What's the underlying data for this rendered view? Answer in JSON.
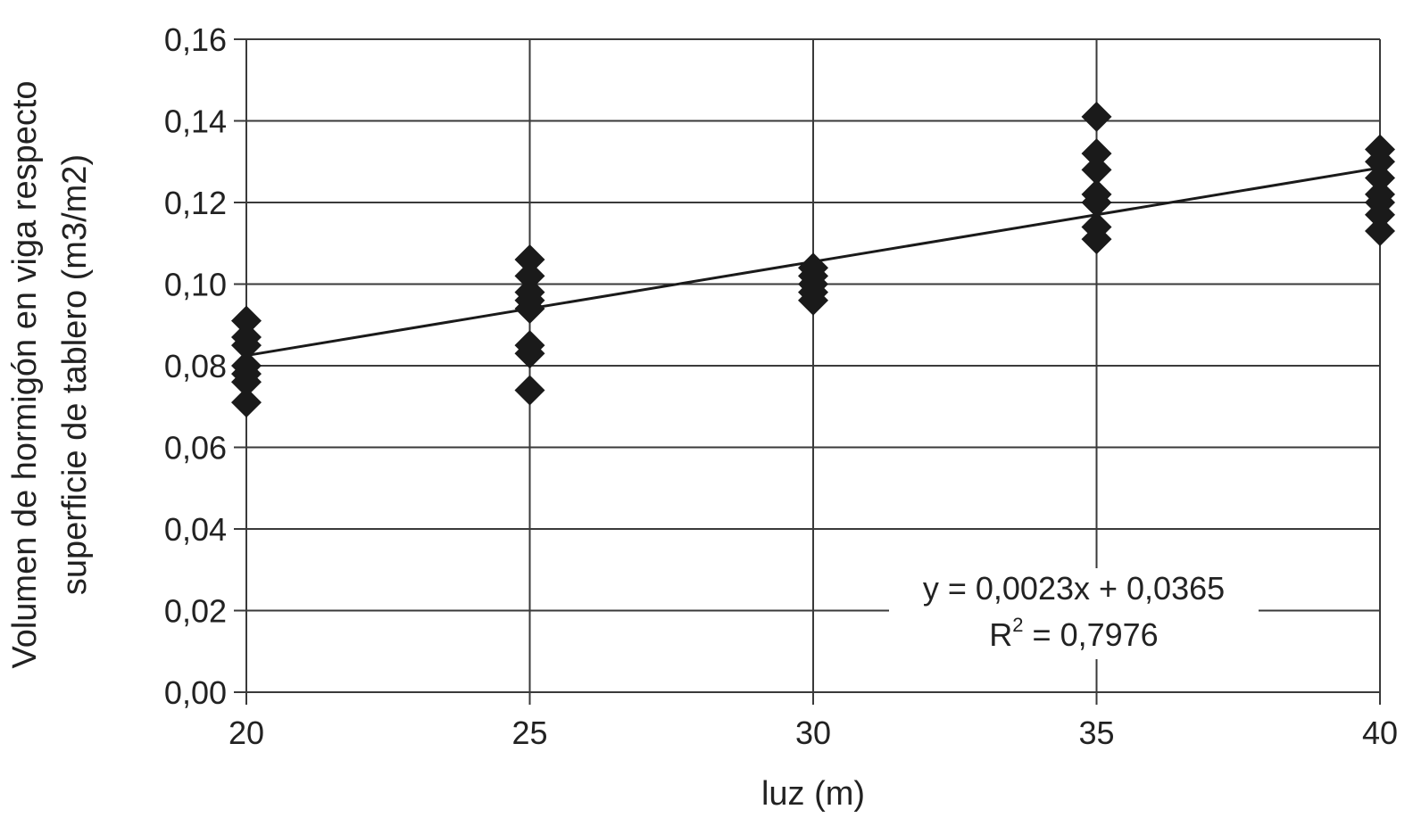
{
  "chart_data": {
    "type": "scatter",
    "xlabel": "luz (m)",
    "ylabel_line1": "Volumen de hormigón en viga respecto",
    "ylabel_line2": "superficie de tablero (m3/m2)",
    "x_ticks": [
      "20",
      "25",
      "30",
      "35",
      "40"
    ],
    "y_ticks": [
      "0,00",
      "0,02",
      "0,04",
      "0,06",
      "0,08",
      "0,10",
      "0,12",
      "0,14",
      "0,16"
    ],
    "xlim": [
      20,
      40
    ],
    "ylim": [
      0,
      0.16
    ],
    "grid": true,
    "marker": "diamond",
    "marker_color": "#1a1a1a",
    "series": [
      {
        "points": [
          {
            "x": 20,
            "y": 0.091
          },
          {
            "x": 20,
            "y": 0.087
          },
          {
            "x": 20,
            "y": 0.085
          },
          {
            "x": 20,
            "y": 0.08
          },
          {
            "x": 20,
            "y": 0.078
          },
          {
            "x": 20,
            "y": 0.076
          },
          {
            "x": 20,
            "y": 0.071
          },
          {
            "x": 25,
            "y": 0.106
          },
          {
            "x": 25,
            "y": 0.102
          },
          {
            "x": 25,
            "y": 0.098
          },
          {
            "x": 25,
            "y": 0.096
          },
          {
            "x": 25,
            "y": 0.094
          },
          {
            "x": 25,
            "y": 0.085
          },
          {
            "x": 25,
            "y": 0.083
          },
          {
            "x": 25,
            "y": 0.074
          },
          {
            "x": 30,
            "y": 0.104
          },
          {
            "x": 30,
            "y": 0.102
          },
          {
            "x": 30,
            "y": 0.1
          },
          {
            "x": 30,
            "y": 0.098
          },
          {
            "x": 30,
            "y": 0.096
          },
          {
            "x": 35,
            "y": 0.141
          },
          {
            "x": 35,
            "y": 0.132
          },
          {
            "x": 35,
            "y": 0.128
          },
          {
            "x": 35,
            "y": 0.122
          },
          {
            "x": 35,
            "y": 0.12
          },
          {
            "x": 35,
            "y": 0.114
          },
          {
            "x": 35,
            "y": 0.111
          },
          {
            "x": 40,
            "y": 0.133
          },
          {
            "x": 40,
            "y": 0.13
          },
          {
            "x": 40,
            "y": 0.126
          },
          {
            "x": 40,
            "y": 0.122
          },
          {
            "x": 40,
            "y": 0.12
          },
          {
            "x": 40,
            "y": 0.117
          },
          {
            "x": 40,
            "y": 0.113
          }
        ]
      }
    ],
    "trendline": {
      "type": "linear",
      "slope": 0.0023,
      "intercept": 0.0365,
      "x_range": [
        20,
        40
      ]
    },
    "annotations": {
      "equation": "y = 0,0023x + 0,0365",
      "r2_base": "R",
      "r2_exp": "2",
      "r2_value": " = 0,7976"
    },
    "colors": {
      "grid": "#3a3a3a",
      "axis": "#3a3a3a",
      "trendline": "#1a1a1a",
      "background": "#ffffff"
    }
  }
}
